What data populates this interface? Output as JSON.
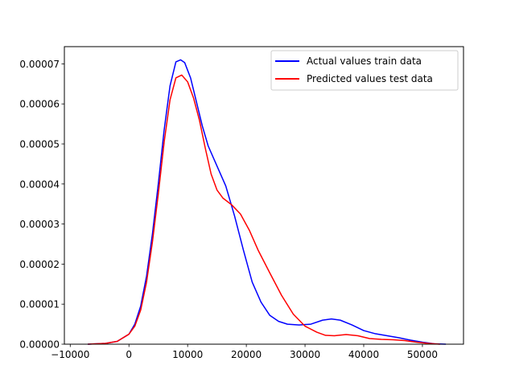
{
  "chart_data": {
    "type": "line",
    "title": "",
    "xlabel": "",
    "ylabel": "",
    "xlim": [
      -11000,
      57000
    ],
    "ylim": [
      0,
      7.43e-05
    ],
    "xticks": [
      -10000,
      0,
      10000,
      20000,
      30000,
      40000,
      50000
    ],
    "xtick_labels": [
      "−10000",
      "0",
      "10000",
      "20000",
      "30000",
      "40000",
      "50000"
    ],
    "yticks": [
      0,
      1e-05,
      2e-05,
      3e-05,
      4e-05,
      5e-05,
      6e-05,
      7e-05
    ],
    "ytick_labels": [
      "0.00000",
      "0.00001",
      "0.00002",
      "0.00003",
      "0.00004",
      "0.00005",
      "0.00006",
      "0.00007"
    ],
    "grid": false,
    "legend_position": "top-right",
    "series": [
      {
        "name": "Actual values train data",
        "color": "#0000ff",
        "points": [
          [
            -7000,
            0
          ],
          [
            -4000,
            2e-07
          ],
          [
            -2000,
            7e-07
          ],
          [
            0,
            2.5e-06
          ],
          [
            1000,
            5e-06
          ],
          [
            2000,
            9.5e-06
          ],
          [
            3000,
            1.7e-05
          ],
          [
            4000,
            2.75e-05
          ],
          [
            5000,
            4e-05
          ],
          [
            6000,
            5.35e-05
          ],
          [
            7000,
            6.45e-05
          ],
          [
            8000,
            7.05e-05
          ],
          [
            8800,
            7.1e-05
          ],
          [
            9500,
            7.03e-05
          ],
          [
            10500,
            6.65e-05
          ],
          [
            11500,
            6.05e-05
          ],
          [
            12500,
            5.45e-05
          ],
          [
            13500,
            4.95e-05
          ],
          [
            15000,
            4.45e-05
          ],
          [
            16500,
            3.95e-05
          ],
          [
            18000,
            3.2e-05
          ],
          [
            19500,
            2.35e-05
          ],
          [
            21000,
            1.55e-05
          ],
          [
            22500,
            1.05e-05
          ],
          [
            24000,
            7.2e-06
          ],
          [
            25500,
            5.7e-06
          ],
          [
            27000,
            5e-06
          ],
          [
            29000,
            4.8e-06
          ],
          [
            31000,
            5e-06
          ],
          [
            33000,
            6e-06
          ],
          [
            34500,
            6.3e-06
          ],
          [
            36000,
            6e-06
          ],
          [
            38000,
            4.8e-06
          ],
          [
            40000,
            3.4e-06
          ],
          [
            42000,
            2.6e-06
          ],
          [
            44000,
            2.1e-06
          ],
          [
            46000,
            1.6e-06
          ],
          [
            48000,
            1e-06
          ],
          [
            50000,
            5e-07
          ],
          [
            52000,
            1e-07
          ],
          [
            54000,
            0
          ]
        ]
      },
      {
        "name": "Predicted values test data",
        "color": "#ff0000",
        "points": [
          [
            -7000,
            0
          ],
          [
            -4000,
            2e-07
          ],
          [
            -2000,
            7e-07
          ],
          [
            0,
            2.5e-06
          ],
          [
            1000,
            4.5e-06
          ],
          [
            2000,
            8.5e-06
          ],
          [
            3000,
            1.55e-05
          ],
          [
            4000,
            2.55e-05
          ],
          [
            5000,
            3.75e-05
          ],
          [
            6000,
            5.05e-05
          ],
          [
            7000,
            6.1e-05
          ],
          [
            8000,
            6.65e-05
          ],
          [
            9000,
            6.72e-05
          ],
          [
            10000,
            6.55e-05
          ],
          [
            11000,
            6.15e-05
          ],
          [
            12000,
            5.6e-05
          ],
          [
            13000,
            4.9e-05
          ],
          [
            14000,
            4.25e-05
          ],
          [
            15000,
            3.85e-05
          ],
          [
            16000,
            3.65e-05
          ],
          [
            17500,
            3.48e-05
          ],
          [
            19000,
            3.25e-05
          ],
          [
            20500,
            2.85e-05
          ],
          [
            22000,
            2.35e-05
          ],
          [
            24000,
            1.78e-05
          ],
          [
            26000,
            1.22e-05
          ],
          [
            28000,
            7.5e-06
          ],
          [
            30000,
            4.5e-06
          ],
          [
            32000,
            3e-06
          ],
          [
            33500,
            2.2e-06
          ],
          [
            35000,
            2.1e-06
          ],
          [
            37000,
            2.4e-06
          ],
          [
            39000,
            2.1e-06
          ],
          [
            41000,
            1.4e-06
          ],
          [
            43000,
            1.2e-06
          ],
          [
            45000,
            1.1e-06
          ],
          [
            47000,
            9e-07
          ],
          [
            49000,
            5e-07
          ],
          [
            51000,
            2e-07
          ],
          [
            53000,
            0
          ]
        ]
      }
    ]
  }
}
